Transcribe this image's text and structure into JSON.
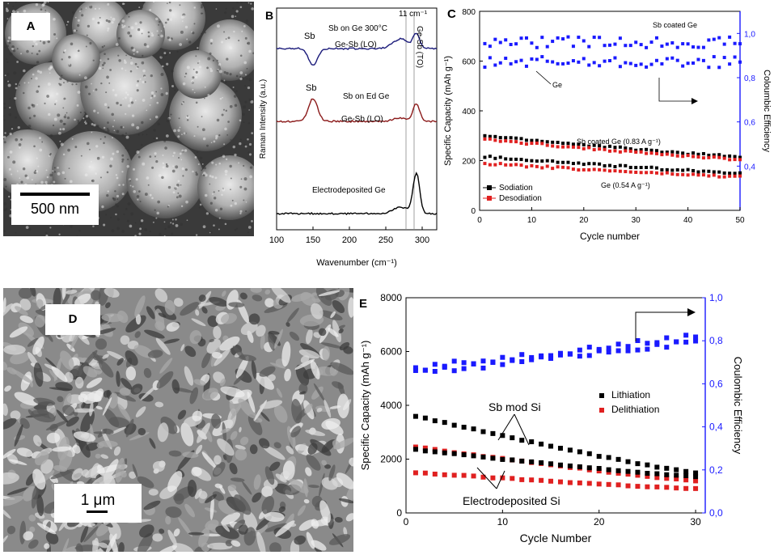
{
  "colors": {
    "black": "#000000",
    "red": "#e02020",
    "blue": "#1a1aff",
    "darkred": "#8b1a1a",
    "navy": "#1a1a7a"
  },
  "panelA": {
    "label": "A",
    "scale": "500 nm"
  },
  "panelD": {
    "label": "D",
    "scale": "1 μm"
  },
  "panelB": {
    "label": "B",
    "xlabel": "Wavenumber (cm⁻¹)",
    "ylabel": "Raman Intensity (a.u.)",
    "xticks": [
      "100",
      "150",
      "200",
      "250",
      "300"
    ],
    "annotations": {
      "sb_top": "Sb",
      "sb_on_ge": "Sb on Ge 300°C",
      "gesb_lo_top": "Ge-Sb (LO)",
      "shift": "11 cm⁻¹",
      "gesb_to": "Ge-Sb (TO)",
      "sb_mid": "Sb",
      "sb_on_ed": "Sb on Ed Ge",
      "gesb_lo_mid": "Ge-Sb (LO)",
      "electro": "Electrodeposited Ge"
    }
  },
  "chart_data": [
    {
      "panel": "C",
      "type": "scatter",
      "xlabel": "Cycle number",
      "ylabel": "Specific Capacity (mAh g⁻¹)",
      "y2label": "Coloumbic Efficiency",
      "xlim": [
        0,
        50
      ],
      "ylim": [
        0,
        800
      ],
      "y2lim": [
        0.2,
        1.1
      ],
      "xticks": [
        "0",
        "10",
        "20",
        "30",
        "40",
        "50"
      ],
      "yticks": [
        "0",
        "200",
        "400",
        "600",
        "800"
      ],
      "y2ticks": [
        "0,4",
        "0,6",
        "0,8",
        "1,0"
      ],
      "legend": [
        "Sodiation",
        "Desodiation"
      ],
      "annotations": {
        "sbge_ce": "Sb coated Ge",
        "ge_ce": "Ge",
        "sbge_cap": "Sb coated Ge (0.83 A g⁻¹)",
        "ge_cap": "Ge (0.54 A g⁻¹)"
      },
      "series": [
        {
          "name": "Sb coated Ge sodiation",
          "start": 300,
          "end": 215
        },
        {
          "name": "Sb coated Ge desodiation",
          "start": 285,
          "end": 205
        },
        {
          "name": "Ge sodiation",
          "start": 215,
          "end": 150
        },
        {
          "name": "Ge desodiation",
          "start": 188,
          "end": 135
        },
        {
          "name": "Sb coated Ge efficiency",
          "level": 0.96
        },
        {
          "name": "Ge efficiency",
          "level": 0.87
        }
      ]
    },
    {
      "panel": "E",
      "type": "scatter",
      "xlabel": "Cycle Number",
      "ylabel": "Specific Capacity (mAh g⁻¹)",
      "y2label": "Coulombic Efficiency",
      "xlim": [
        0,
        31
      ],
      "ylim": [
        0,
        8000
      ],
      "y2lim": [
        0,
        1.0
      ],
      "xticks": [
        "0",
        "10",
        "20",
        "30"
      ],
      "yticks": [
        "0",
        "2000",
        "4000",
        "6000",
        "8000"
      ],
      "y2ticks": [
        "0,0",
        "0,2",
        "0,4",
        "0,6",
        "0,8",
        "1,0"
      ],
      "legend": [
        "Lithiation",
        "Delithiation"
      ],
      "annotations": {
        "sb": "Sb mod Si",
        "ed": "Electrodeposited Si"
      },
      "series": [
        {
          "name": "Sb mod Si lithiation",
          "start": 3600,
          "end": 1500
        },
        {
          "name": "Sb mod Si delithiation",
          "start": 2450,
          "end": 1200
        },
        {
          "name": "ED Si lithiation",
          "start": 2350,
          "end": 1350
        },
        {
          "name": "ED Si delithiation",
          "start": 1500,
          "end": 900
        },
        {
          "name": "efficiency A",
          "start": 0.65,
          "end": 0.8
        },
        {
          "name": "efficiency B",
          "start": 0.67,
          "end": 0.82
        }
      ]
    }
  ]
}
